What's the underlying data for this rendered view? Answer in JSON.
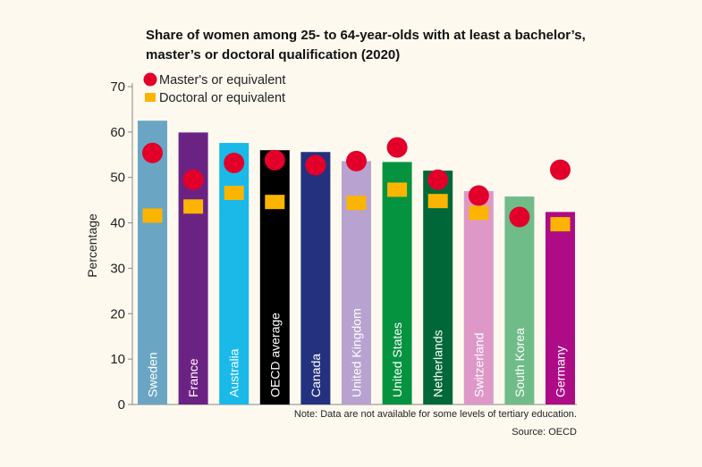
{
  "chart_data": {
    "type": "bar",
    "title": "Share of women among 25- to 64-year-olds with at least a bachelor's, master's or doctoral qualification (2020)",
    "title_lines": [
      "Share of women among 25- to 64-year-olds with at least a bachelor’s,",
      "master’s or doctoral qualification (2020)"
    ],
    "ylabel": "Percentage",
    "ylim": [
      0,
      70
    ],
    "yticks": [
      0,
      10,
      20,
      30,
      40,
      50,
      60,
      70
    ],
    "grid": false,
    "legend_placement": "top-left",
    "categories": [
      "Sweden",
      "France",
      "Australia",
      "OECD average",
      "Canada",
      "United Kingdom",
      "United States",
      "Netherlands",
      "Switzerland",
      "South Korea",
      "Germany"
    ],
    "bar_colors": [
      "#6aa6c4",
      "#6b2383",
      "#1ab9e8",
      "#000000",
      "#24317e",
      "#b8a2cf",
      "#06933f",
      "#006838",
      "#dd98c7",
      "#70bc89",
      "#ad0c86"
    ],
    "series": [
      {
        "name": "",
        "kind": "bar",
        "values": [
          62.5,
          59.9,
          57.6,
          56.0,
          55.6,
          53.6,
          53.4,
          51.5,
          47.0,
          45.8,
          42.4
        ]
      },
      {
        "name": "Master's or equivalent",
        "kind": "circle",
        "color": "#e2002b",
        "values": [
          55.4,
          49.5,
          53.2,
          53.8,
          52.7,
          53.6,
          56.6,
          49.5,
          46.0,
          41.3,
          51.7
        ]
      },
      {
        "name": "Doctoral or equivalent",
        "kind": "square",
        "color": "#fbb500",
        "values": [
          41.6,
          43.6,
          46.6,
          44.6,
          null,
          44.4,
          47.3,
          44.8,
          42.2,
          null,
          39.7
        ]
      }
    ],
    "note": "Note: Data are not available for some levels of tertiary education.",
    "source": "Source: OECD"
  }
}
